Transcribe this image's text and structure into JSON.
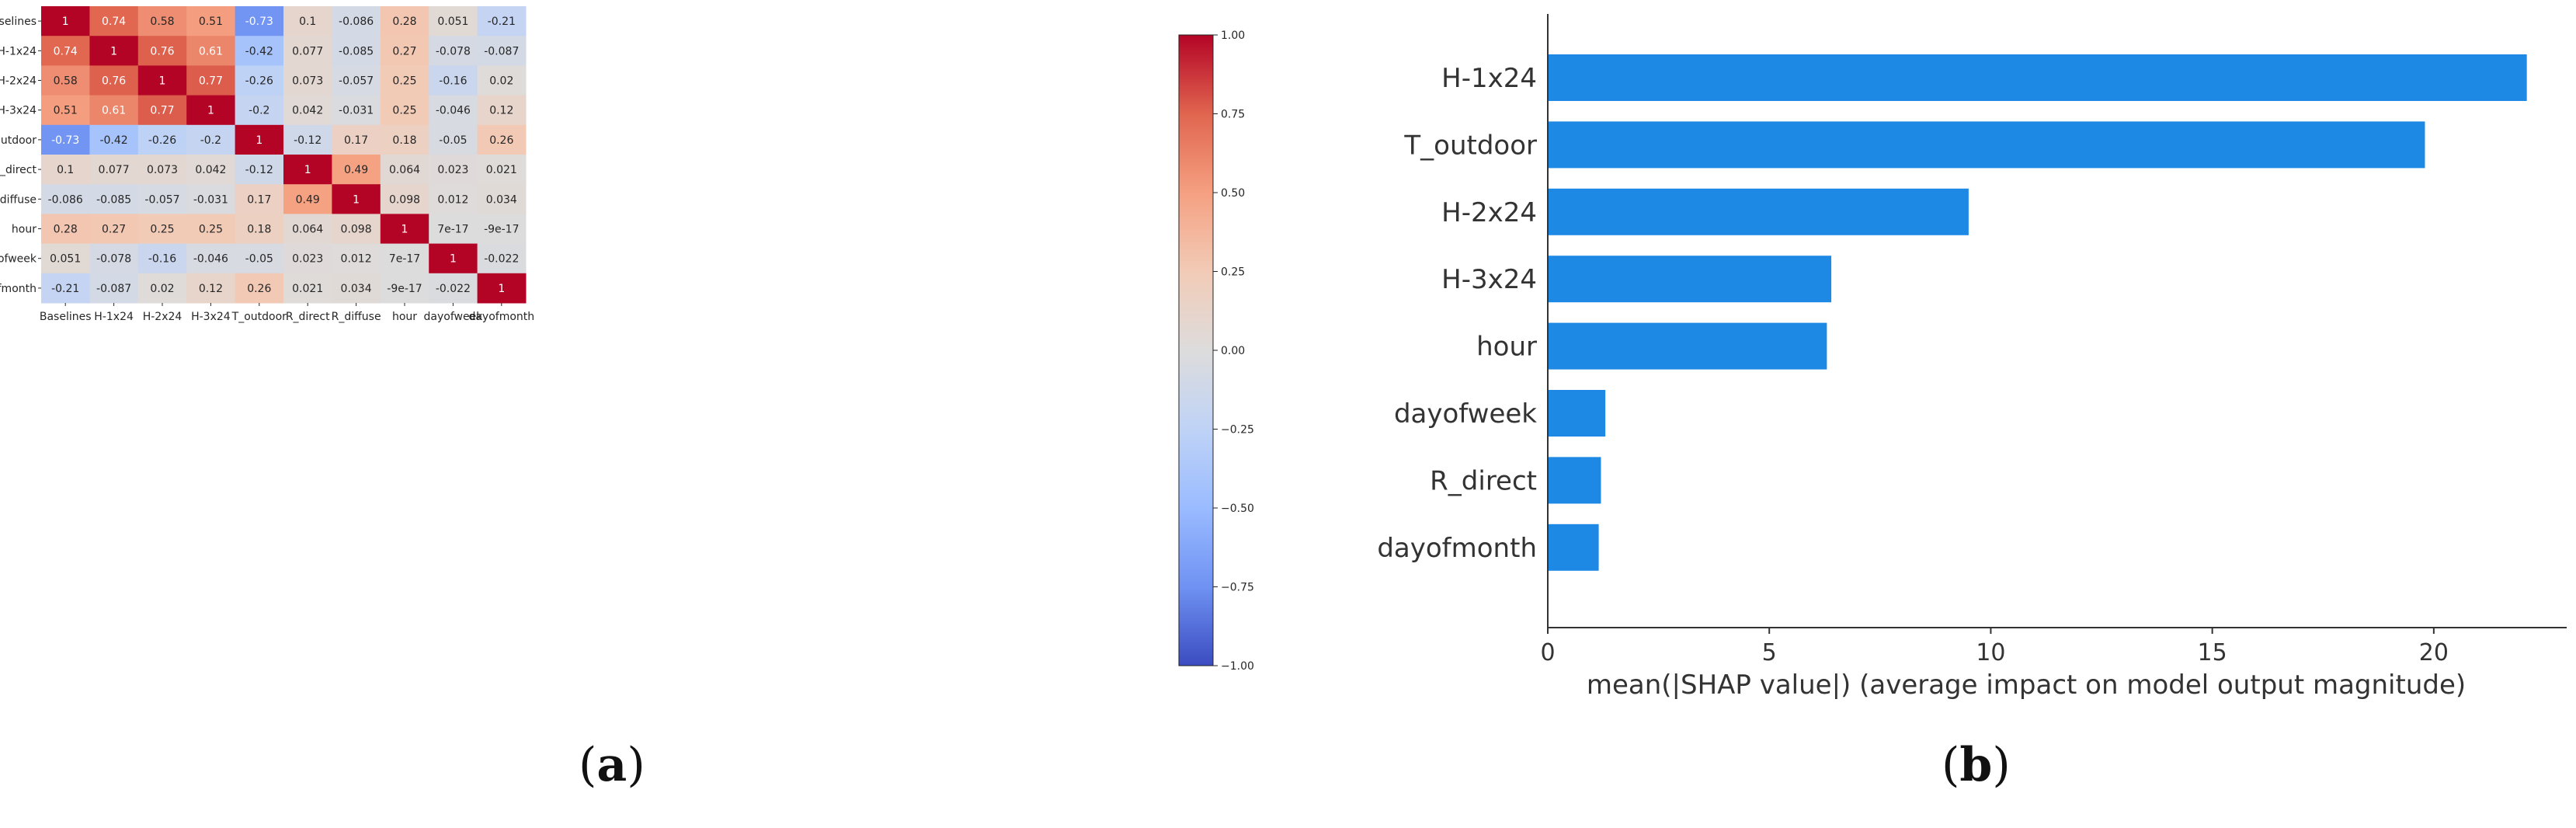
{
  "panels": {
    "a": {
      "open": "(",
      "letter": "a",
      "close": ")"
    },
    "b": {
      "open": "(",
      "letter": "b",
      "close": ")"
    }
  },
  "chart_data": [
    {
      "type": "heatmap",
      "title": "",
      "variables": [
        "Baselines",
        "H-1x24",
        "H-2x24",
        "H-3x24",
        "T_outdoor",
        "R_direct",
        "R_diffuse",
        "hour",
        "dayofweek",
        "dayofmonth"
      ],
      "cells": [
        [
          "1",
          "0.74",
          "0.58",
          "0.51",
          "-0.73",
          "0.1",
          "-0.086",
          "0.28",
          "0.051",
          "-0.21"
        ],
        [
          "0.74",
          "1",
          "0.76",
          "0.61",
          "-0.42",
          "0.077",
          "-0.085",
          "0.27",
          "-0.078",
          "-0.087"
        ],
        [
          "0.58",
          "0.76",
          "1",
          "0.77",
          "-0.26",
          "0.073",
          "-0.057",
          "0.25",
          "-0.16",
          "0.02"
        ],
        [
          "0.51",
          "0.61",
          "0.77",
          "1",
          "-0.2",
          "0.042",
          "-0.031",
          "0.25",
          "-0.046",
          "0.12"
        ],
        [
          "-0.73",
          "-0.42",
          "-0.26",
          "-0.2",
          "1",
          "-0.12",
          "0.17",
          "0.18",
          "-0.05",
          "0.26"
        ],
        [
          "0.1",
          "0.077",
          "0.073",
          "0.042",
          "-0.12",
          "1",
          "0.49",
          "0.064",
          "0.023",
          "0.021"
        ],
        [
          "-0.086",
          "-0.085",
          "-0.057",
          "-0.031",
          "0.17",
          "0.49",
          "1",
          "0.098",
          "0.012",
          "0.034"
        ],
        [
          "0.28",
          "0.27",
          "0.25",
          "0.25",
          "0.18",
          "0.064",
          "0.098",
          "1",
          "7e-17",
          "-9e-17"
        ],
        [
          "0.051",
          "-0.078",
          "-0.16",
          "-0.046",
          "-0.05",
          "0.023",
          "0.012",
          "7e-17",
          "1",
          "-0.022"
        ],
        [
          "-0.21",
          "-0.087",
          "0.02",
          "0.12",
          "0.26",
          "0.021",
          "0.034",
          "-9e-17",
          "-0.022",
          "1"
        ]
      ],
      "colorbar": {
        "range": [
          -1,
          1
        ],
        "ticks": [
          1,
          0.75,
          0.5,
          0.25,
          0,
          -0.25,
          -0.5,
          -0.75,
          -1
        ],
        "tick_labels": [
          "1.00",
          "0.75",
          "0.50",
          "0.25",
          "0.00",
          "−0.25",
          "−0.50",
          "−0.75",
          "−1.00"
        ],
        "colors": {
          "low": "#3b4cc0",
          "mid": "#dddcdc",
          "high": "#b40426"
        }
      }
    },
    {
      "type": "bar",
      "orientation": "horizontal",
      "categories": [
        "H-1x24",
        "T_outdoor",
        "H-2x24",
        "H-3x24",
        "hour",
        "dayofweek",
        "R_direct",
        "dayofmonth"
      ],
      "values": [
        22.1,
        19.8,
        9.5,
        6.4,
        6.3,
        1.3,
        1.2,
        1.15
      ],
      "xlabel": "mean(|SHAP value|) (average impact on model output magnitude)",
      "ylabel": "",
      "xlim": [
        0,
        23
      ],
      "xticks": [
        0,
        5,
        10,
        15,
        20
      ],
      "bar_color": "#1e88e5"
    }
  ]
}
